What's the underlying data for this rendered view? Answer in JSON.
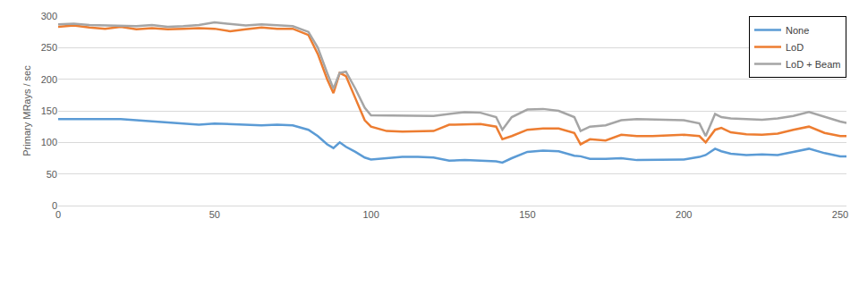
{
  "chart_data": {
    "type": "line",
    "y_label": "Primary MRays / sec",
    "x": [
      0,
      5,
      10,
      15,
      20,
      25,
      30,
      35,
      40,
      45,
      50,
      55,
      60,
      65,
      70,
      75,
      80,
      83,
      86,
      88,
      90,
      92,
      95,
      98,
      100,
      105,
      110,
      115,
      120,
      125,
      130,
      135,
      140,
      142,
      145,
      150,
      155,
      160,
      165,
      167,
      170,
      175,
      180,
      185,
      190,
      195,
      200,
      205,
      207,
      210,
      212,
      215,
      220,
      225,
      230,
      235,
      240,
      245,
      250,
      252
    ],
    "series": [
      {
        "name": "None",
        "color": "#5b9bd5",
        "values": [
          137,
          137,
          137,
          136,
          137,
          135,
          133,
          132,
          130,
          128,
          130,
          129,
          128,
          127,
          128,
          127,
          120,
          110,
          97,
          91,
          100,
          93,
          85,
          76,
          73,
          75,
          77,
          77,
          76,
          71,
          72,
          71,
          70,
          68,
          75,
          85,
          87,
          86,
          79,
          78,
          74,
          74,
          75,
          72,
          72,
          73,
          73,
          77,
          80,
          90,
          86,
          82,
          80,
          81,
          80,
          85,
          90,
          83,
          78,
          78
        ]
      },
      {
        "name": "LoD",
        "color": "#ed7d31",
        "values": [
          283,
          285,
          282,
          280,
          283,
          279,
          281,
          279,
          280,
          281,
          280,
          276,
          279,
          282,
          280,
          280,
          270,
          240,
          200,
          178,
          210,
          205,
          170,
          135,
          125,
          118,
          117,
          117,
          118,
          128,
          128,
          129,
          125,
          105,
          110,
          120,
          122,
          122,
          115,
          97,
          105,
          103,
          112,
          110,
          110,
          111,
          112,
          110,
          100,
          120,
          123,
          116,
          113,
          112,
          114,
          120,
          125,
          115,
          110,
          110
        ]
      },
      {
        "name": "LoD + Beam",
        "color": "#a5a5a5",
        "values": [
          287,
          288,
          286,
          285,
          285,
          284,
          286,
          283,
          284,
          286,
          290,
          287,
          285,
          287,
          285,
          284,
          275,
          250,
          210,
          185,
          210,
          212,
          185,
          155,
          143,
          143,
          143,
          142,
          142,
          145,
          148,
          147,
          140,
          120,
          140,
          152,
          153,
          150,
          140,
          118,
          125,
          127,
          135,
          137,
          136,
          136,
          135,
          130,
          110,
          145,
          140,
          138,
          137,
          136,
          138,
          142,
          148,
          140,
          133,
          131
        ]
      }
    ],
    "xlim": [
      0,
      252
    ],
    "xticks": [
      0,
      50,
      100,
      150,
      200,
      250
    ],
    "ylim": [
      0,
      300
    ],
    "yticks": [
      0,
      50,
      100,
      150,
      200,
      250,
      300
    ],
    "grid": true,
    "legend": "top right"
  }
}
